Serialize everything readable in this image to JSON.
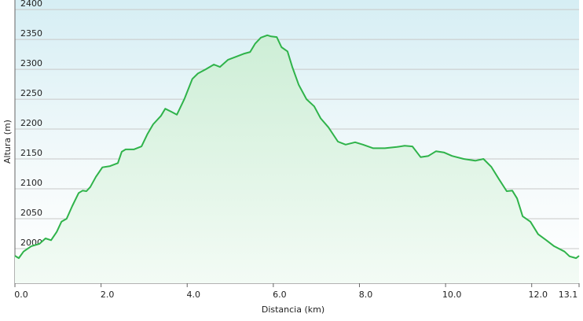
{
  "chart_data": {
    "type": "area",
    "x_label": "Distancia  (km)",
    "y_label": "Altura (m)",
    "x": [
      0,
      0.09,
      0.2,
      0.38,
      0.57,
      0.71,
      0.84,
      0.97,
      1.08,
      1.2,
      1.33,
      1.48,
      1.57,
      1.66,
      1.75,
      1.88,
      2.03,
      2.21,
      2.39,
      2.48,
      2.57,
      2.76,
      2.94,
      3.08,
      3.21,
      3.39,
      3.49,
      3.63,
      3.76,
      3.94,
      4.12,
      4.25,
      4.43,
      4.62,
      4.76,
      4.95,
      5.13,
      5.31,
      5.46,
      5.58,
      5.71,
      5.86,
      5.95,
      6.08,
      6.19,
      6.33,
      6.44,
      6.59,
      6.77,
      6.95,
      7.1,
      7.28,
      7.5,
      7.68,
      7.9,
      8.08,
      8.32,
      8.59,
      8.87,
      9.05,
      9.23,
      9.42,
      9.6,
      9.78,
      9.96,
      10.15,
      10.42,
      10.69,
      10.88,
      11.06,
      11.24,
      11.42,
      11.55,
      11.66,
      11.79,
      11.97,
      12.15,
      12.34,
      12.52,
      12.76,
      12.88,
      13.03,
      13.1
    ],
    "series": [
      {
        "color": "#2fb34a",
        "values": [
          1988,
          1984,
          1995,
          2004,
          2008,
          2017,
          2014,
          2028,
          2045,
          2050,
          2071,
          2093,
          2097,
          2096,
          2103,
          2120,
          2136,
          2138,
          2143,
          2162,
          2166,
          2166,
          2171,
          2192,
          2208,
          2222,
          2234,
          2229,
          2224,
          2251,
          2284,
          2293,
          2300,
          2308,
          2304,
          2316,
          2321,
          2326,
          2329,
          2343,
          2353,
          2357,
          2355,
          2354,
          2337,
          2330,
          2304,
          2274,
          2250,
          2238,
          2218,
          2203,
          2179,
          2174,
          2178,
          2174,
          2168,
          2168,
          2170,
          2172,
          2171,
          2153,
          2155,
          2163,
          2161,
          2155,
          2150,
          2147,
          2150,
          2137,
          2116,
          2096,
          2097,
          2084,
          2054,
          2045,
          2024,
          2014,
          2004,
          1995,
          1987,
          1984,
          1988
        ]
      }
    ],
    "xlim": [
      0,
      13.1
    ],
    "ylim": [
      1942,
      2416
    ],
    "xticks": [
      {
        "value": 0,
        "label": "0.0"
      },
      {
        "value": 2,
        "label": "2.0"
      },
      {
        "value": 4,
        "label": "4.0"
      },
      {
        "value": 6,
        "label": "6.0"
      },
      {
        "value": 8,
        "label": "8.0"
      },
      {
        "value": 10,
        "label": "10.0"
      },
      {
        "value": 12,
        "label": "12.0"
      },
      13.1
    ],
    "yticks": [
      2000,
      2050,
      2100,
      2150,
      2200,
      2250,
      2300,
      2350,
      2400
    ],
    "grid": true
  }
}
